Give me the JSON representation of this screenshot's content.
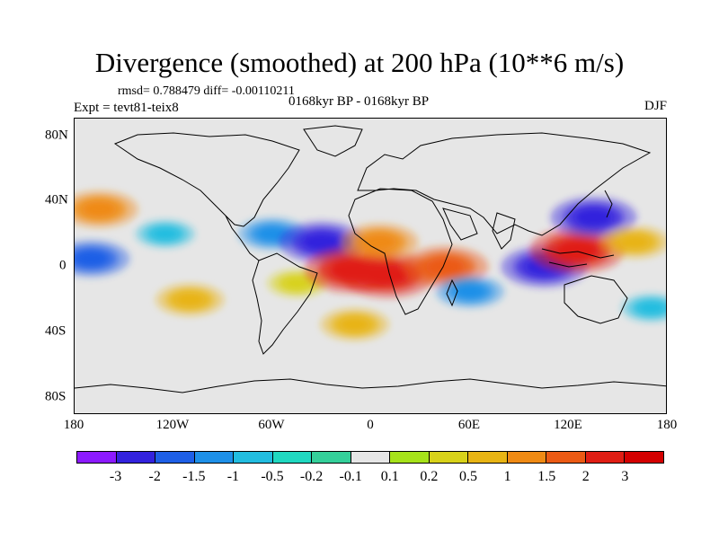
{
  "title": "Divergence (smoothed) at 200 hPa (10**6 m/s)",
  "stats": "rmsd= 0.788479 diff= -0.00110211",
  "experiment": "Expt = tevt81-teix8",
  "period": "0168kyr BP - 0168kyr BP",
  "season": "DJF",
  "lat_labels": [
    "80N",
    "40N",
    "0",
    "40S",
    "80S"
  ],
  "lon_labels": [
    "180",
    "120W",
    "60W",
    "0",
    "60E",
    "120E",
    "180"
  ],
  "colorbar": {
    "labels": [
      "-3",
      "-2",
      "-1.5",
      "-1",
      "-0.5",
      "-0.2",
      "-0.1",
      "0.1",
      "0.2",
      "0.5",
      "1",
      "1.5",
      "2",
      "3"
    ],
    "colors": [
      "#8c1aff",
      "#3322dd",
      "#1e5fe6",
      "#1e90e8",
      "#22bde0",
      "#20d8c0",
      "#34d09a",
      "#e6e6e6",
      "#a6e21a",
      "#d8d21a",
      "#e8b414",
      "#ef8a14",
      "#eb5a14",
      "#e01e14",
      "#d40000"
    ]
  },
  "chart_data": {
    "type": "heatmap",
    "title": "Divergence (smoothed) at 200 hPa (10**6 m/s)",
    "units": "10**6 m/s",
    "region": "global",
    "x_range": [
      -180,
      180
    ],
    "y_range": [
      -90,
      90
    ],
    "levels": [
      -3,
      -2,
      -1.5,
      -1,
      -0.5,
      -0.2,
      -0.1,
      0.1,
      0.2,
      0.5,
      1,
      1.5,
      2,
      3
    ],
    "features": [
      {
        "lon": -165,
        "lat": 35,
        "value": 1.5
      },
      {
        "lon": -170,
        "lat": 5,
        "value": -1.5
      },
      {
        "lon": -125,
        "lat": 20,
        "value": -0.5
      },
      {
        "lon": -110,
        "lat": -20,
        "value": 1.0
      },
      {
        "lon": -60,
        "lat": 20,
        "value": -1.0
      },
      {
        "lon": -30,
        "lat": 15,
        "value": -2.0
      },
      {
        "lon": -45,
        "lat": -10,
        "value": 0.5
      },
      {
        "lon": -12,
        "lat": -2,
        "value": 2.5
      },
      {
        "lon": 10,
        "lat": -5,
        "value": 2.5
      },
      {
        "lon": 5,
        "lat": 15,
        "value": 1.5
      },
      {
        "lon": 45,
        "lat": 0,
        "value": 2.0
      },
      {
        "lon": 60,
        "lat": -15,
        "value": -1.0
      },
      {
        "lon": 105,
        "lat": 0,
        "value": -2.0
      },
      {
        "lon": 125,
        "lat": 10,
        "value": 2.5
      },
      {
        "lon": 135,
        "lat": 30,
        "value": -2.0
      },
      {
        "lon": 160,
        "lat": 15,
        "value": 1.0
      },
      {
        "lon": -10,
        "lat": -35,
        "value": 1.0
      },
      {
        "lon": 170,
        "lat": -25,
        "value": -0.5
      }
    ]
  }
}
